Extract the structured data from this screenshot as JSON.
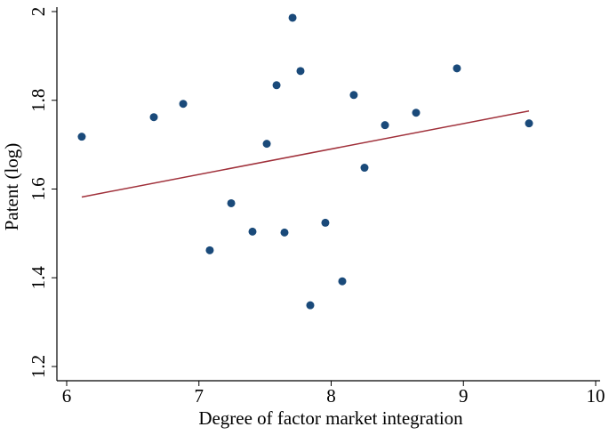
{
  "chart_data": {
    "type": "scatter",
    "x_label": "Degree of factor market integration",
    "y_label": "Patent (log)",
    "xlim": [
      6,
      10
    ],
    "xticks": [
      6,
      7,
      8,
      9,
      10
    ],
    "ylim": [
      1.2,
      2
    ],
    "yticks": [
      1.2,
      1.4,
      1.6,
      1.8,
      2
    ],
    "series": [
      {
        "type": "scatter",
        "color": "#1a4a7a",
        "x": [
          6.114,
          6.659,
          6.881,
          7.082,
          7.244,
          7.405,
          7.513,
          7.587,
          7.647,
          7.708,
          7.768,
          7.842,
          7.956,
          8.084,
          8.171,
          8.252,
          8.407,
          8.642,
          8.951,
          9.496
        ],
        "values": [
          1.718,
          1.762,
          1.792,
          1.462,
          1.568,
          1.504,
          1.702,
          1.834,
          1.502,
          1.986,
          1.866,
          1.338,
          1.524,
          1.392,
          1.812,
          1.648,
          1.744,
          1.772,
          1.872,
          1.748
        ]
      },
      {
        "type": "line",
        "color": "#a0303a",
        "x": [
          6.114,
          9.496
        ],
        "values": [
          1.582,
          1.776
        ]
      }
    ]
  }
}
